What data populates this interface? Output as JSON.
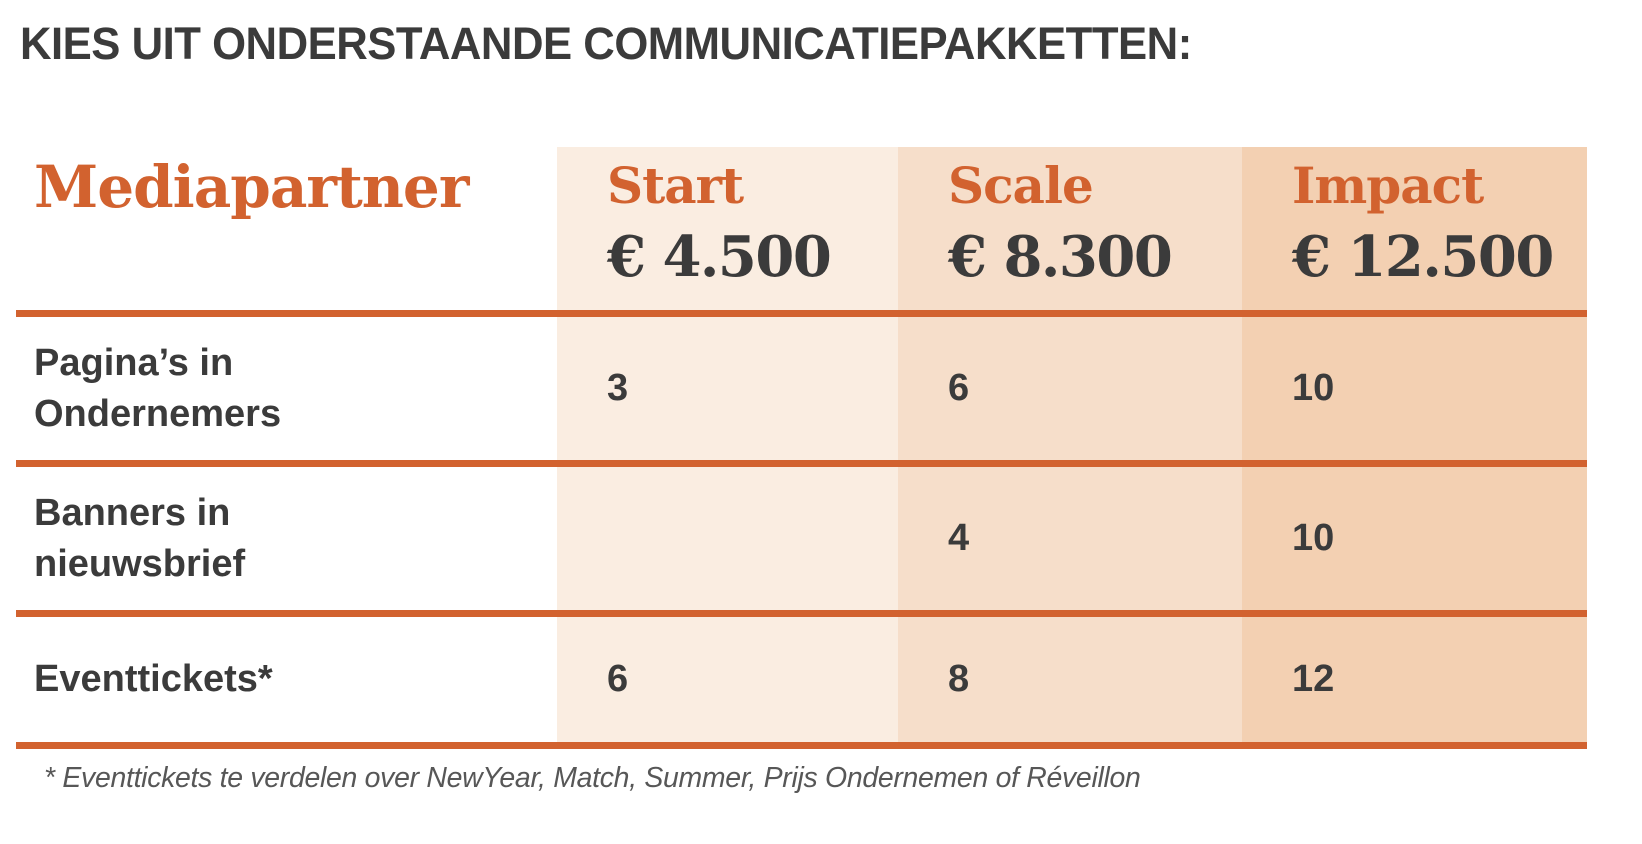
{
  "title": "KIES UIT ONDERSTAANDE COMMUNICATIEPAKKETTEN:",
  "table": {
    "row_header_label": "Mediapartner",
    "columns": [
      {
        "name": "Start",
        "price": "€ 4.500"
      },
      {
        "name": "Scale",
        "price": "€ 8.300"
      },
      {
        "name": "Impact",
        "price": "€ 12.500"
      }
    ],
    "rows": [
      {
        "label": "Pagina’s in Ondernemers",
        "values": [
          "3",
          "6",
          "10"
        ]
      },
      {
        "label": "Banners in nieuwsbrief",
        "values": [
          "",
          "4",
          "10"
        ]
      },
      {
        "label": "Eventtickets*",
        "values": [
          "6",
          "8",
          "12"
        ]
      }
    ]
  },
  "footnote": "* Eventtickets te verdelen over NewYear, Match, Summer, Prijs Ondernemen of Réveillon",
  "colors": {
    "accent_orange": "#D2622F",
    "column_bg_start": "#FAEDE1",
    "column_bg_scale": "#F6DECA",
    "column_bg_impact": "#F3D0B2",
    "text_dark": "#3B3B3B",
    "footnote_gray": "#575757"
  }
}
